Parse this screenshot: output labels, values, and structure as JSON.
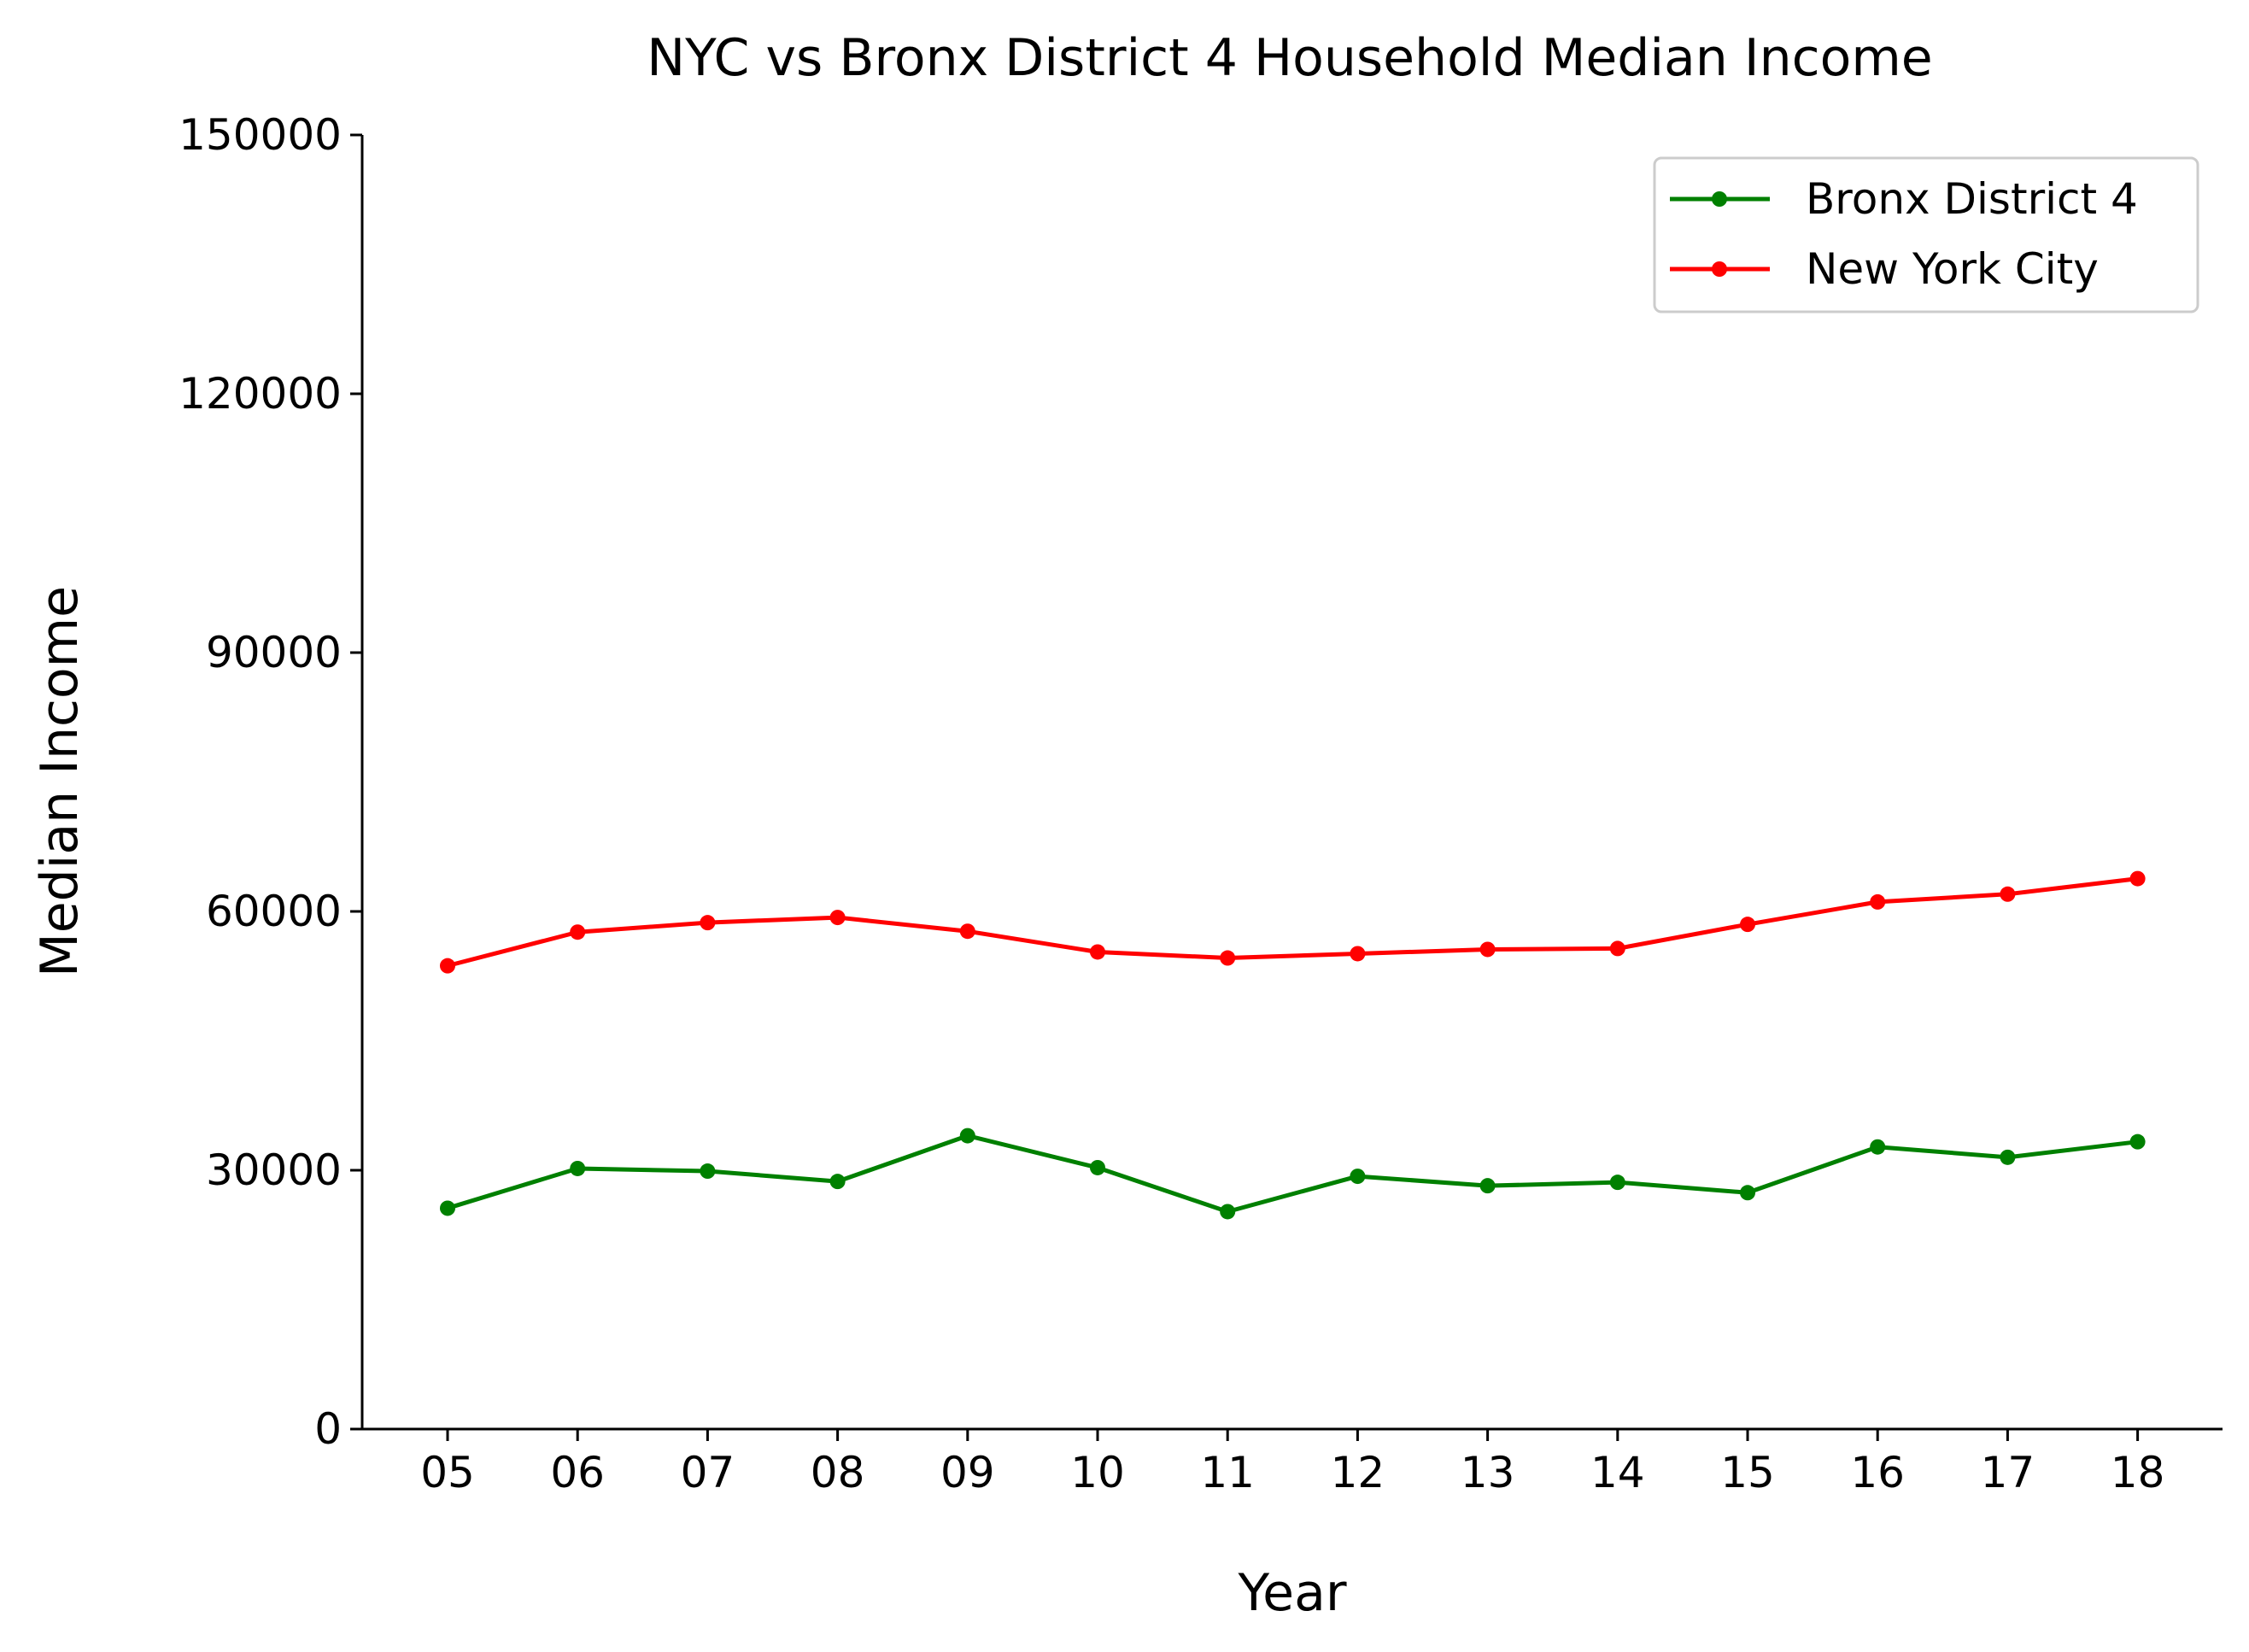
{
  "chart_data": {
    "type": "line",
    "title": "NYC vs Bronx District 4 Household Median Income",
    "xlabel": "Year",
    "ylabel": "Median Income",
    "categories": [
      "05",
      "06",
      "07",
      "08",
      "09",
      "10",
      "11",
      "12",
      "13",
      "14",
      "15",
      "16",
      "17",
      "18"
    ],
    "ylim": [
      0,
      150000
    ],
    "yticks": [
      "0",
      "30000",
      "60000",
      "90000",
      "120000",
      "150000"
    ],
    "grid": false,
    "legend_position": "top-right",
    "series": [
      {
        "name": "Bronx District 4",
        "color": "#008000",
        "values": [
          25600,
          30200,
          29900,
          28700,
          34000,
          30300,
          25200,
          29300,
          28200,
          28600,
          27400,
          32700,
          31500,
          33300
        ]
      },
      {
        "name": "New York City",
        "color": "#ff0000",
        "values": [
          53700,
          57600,
          58700,
          59300,
          57700,
          55300,
          54600,
          55100,
          55600,
          55700,
          58500,
          61100,
          62000,
          63800
        ]
      }
    ]
  }
}
